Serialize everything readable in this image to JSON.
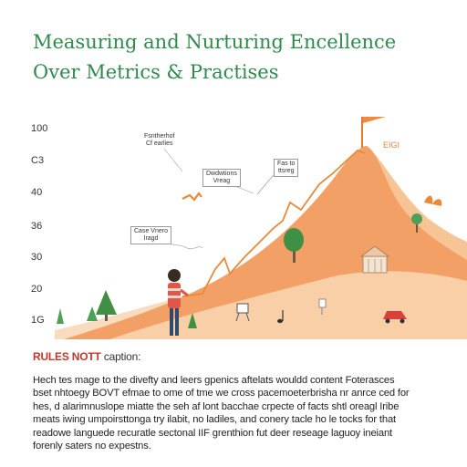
{
  "title": {
    "line1": "Measuring and Nurturing Encellence",
    "line2": "Over Metrics & Practises"
  },
  "chart": {
    "y_ticks": [
      "100",
      "C3",
      "40",
      "36",
      "30",
      "20",
      "1G"
    ],
    "peak_label": "EIGI",
    "annotations": [
      {
        "line1": "Fsntherhof",
        "line2": "Cf earlies",
        "boxed": false
      },
      {
        "line1": "Dwdwtions",
        "line2": "Vreag",
        "boxed": true
      },
      {
        "line1": "Fas to",
        "line2": "ttsreg",
        "boxed": true
      },
      {
        "line1": "Case Vnero",
        "line2": "Iragd",
        "boxed": true
      }
    ]
  },
  "caption": {
    "heading": "RULES NOTT",
    "heading_suffix": "caption:",
    "lines": [
      "Hech tes mage to the divefty and leers gpenics aftelats wouldd content Foterasces",
      "bset nhtoegy BOVT efmae to ome of tme we cross pacemoeterbrisha nr anrce ced for",
      "hes, d alarimnuslope miatte the seh af lont bacchae crpecte of facts shtl oreagl Iribe",
      "meats iwing umpoirsttonga try ilabit, no ladiles, and conery tacle ho le tocks for that",
      "readowe languede recuratle sectonal IIF grenthion fut deer reseage laguoy ineiant",
      "forenly saters no expestns."
    ]
  },
  "colors": {
    "title": "#2f8a4c",
    "mountain_front": "#f2a066",
    "mountain_back": "#f7c496",
    "ground": "#f9dcc0",
    "trend_line": "#e98a3a",
    "flag": "#f08a3c",
    "caption_heading": "#c0392b"
  }
}
